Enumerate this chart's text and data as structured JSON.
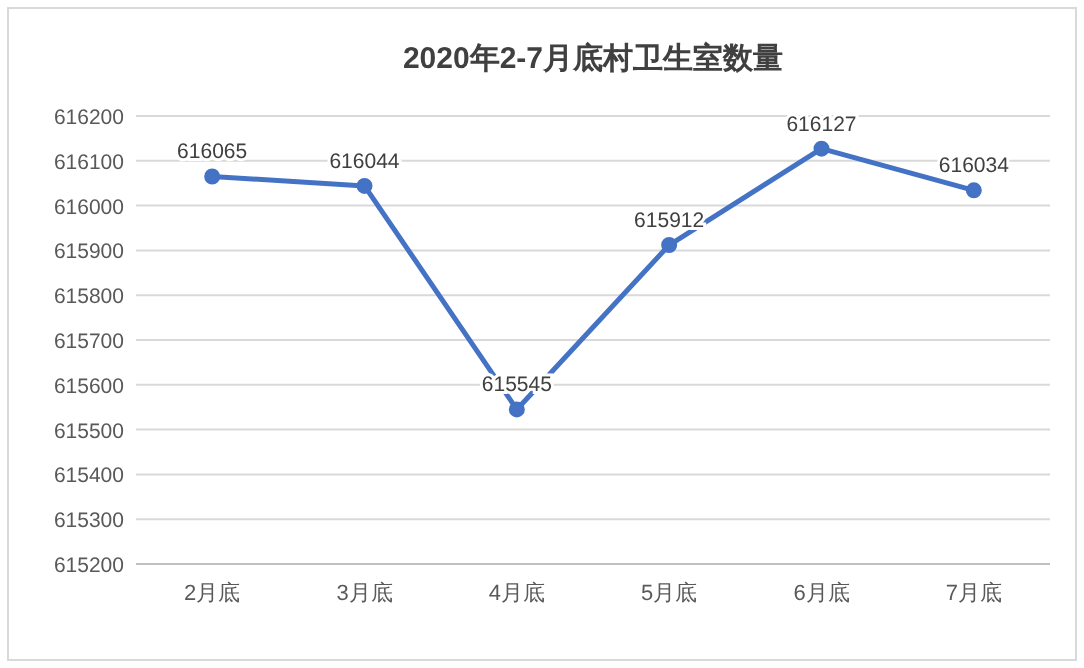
{
  "chart_data": {
    "type": "line",
    "title": "2020年2-7月底村卫生室数量",
    "categories": [
      "2月底",
      "3月底",
      "4月底",
      "5月底",
      "6月底",
      "7月底"
    ],
    "series": [
      {
        "color": "#4472c4",
        "values": [
          616065,
          616044,
          615545,
          615912,
          616127,
          616034
        ]
      }
    ],
    "ylim": [
      615200,
      616200
    ],
    "yticks": [
      615200,
      615300,
      615400,
      615500,
      615600,
      615700,
      615800,
      615900,
      616000,
      616100,
      616200
    ],
    "grid": "y",
    "marker": "circle",
    "line_style": "solid",
    "data_labels": true
  }
}
